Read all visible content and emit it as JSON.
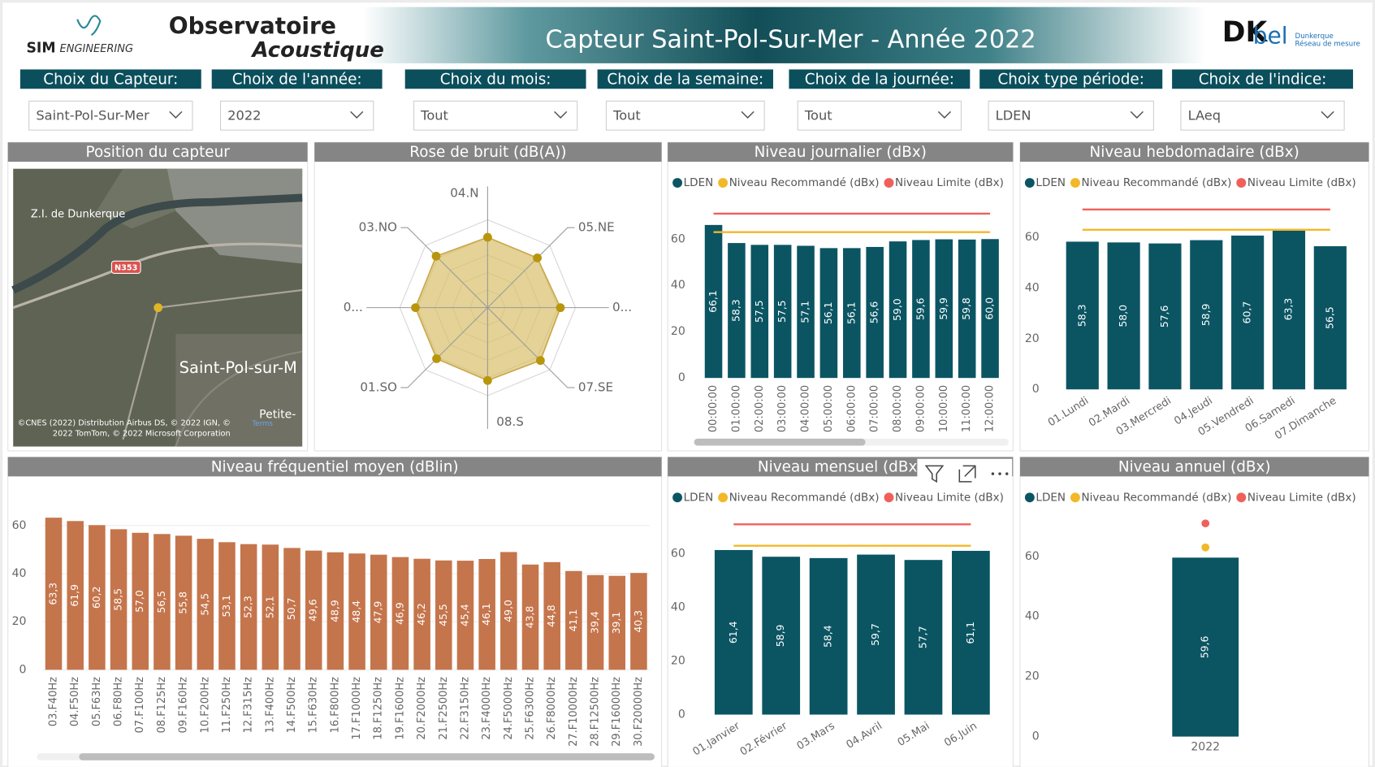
{
  "header": {
    "logo": {
      "sim": "SIM",
      "engineering": "ENGINEERING"
    },
    "brand_1": "Observatoire",
    "brand_2": "Acoustique",
    "title": "Capteur Saint-Pol-Sur-Mer - Année 2022",
    "partner": {
      "dk": "DK",
      "bel": "bel",
      "line_1": "Dunkerque",
      "line_2": "Réseau de mesure"
    }
  },
  "filters": [
    {
      "label": "Choix du Capteur:",
      "value": "Saint-Pol-Sur-Mer"
    },
    {
      "label": "Choix de l'année:",
      "value": "2022"
    },
    {
      "label": "Choix du mois:",
      "value": "Tout"
    },
    {
      "label": "Choix de la semaine:",
      "value": "Tout"
    },
    {
      "label": "Choix de la journée:",
      "value": "Tout"
    },
    {
      "label": "Choix type période:",
      "value": "LDEN"
    },
    {
      "label": "Choix de l'indice:",
      "value": "LAeq"
    }
  ],
  "map": {
    "title": "Position du capteur",
    "labels": {
      "zone": "Z.I. de Dunkerque",
      "road": "N353",
      "town": "Saint-Pol-sur-M",
      "town_2": "Petite-"
    },
    "attribution": [
      "©CNES (2022) Distribution Airbus DS, © 2022 IGN, ©",
      "2022 TomTom, © 2022 Microsoft Corporation"
    ],
    "terms": "Terms"
  },
  "chart_data": [
    {
      "type": "radar",
      "title": "Rose de bruit (dB(A))",
      "categories": [
        "04.N",
        "05.NE",
        "0...",
        "07.SE",
        "08.S",
        "01.SO",
        "0...",
        "03.NO"
      ],
      "values": [
        56,
        56,
        58,
        59.5,
        58,
        57.5,
        57.5,
        58
      ],
      "color": "#b8960c",
      "rlim": [
        0,
        70
      ]
    },
    {
      "type": "bar",
      "title": "Niveau journalier (dBx)",
      "categories": [
        "00:00:00",
        "01:00:00",
        "02:00:00",
        "03:00:00",
        "04:00:00",
        "05:00:00",
        "06:00:00",
        "07:00:00",
        "08:00:00",
        "09:00:00",
        "10:00:00",
        "11:00:00",
        "12:00:00"
      ],
      "series": [
        {
          "name": "LDEN",
          "color": "#0b5563",
          "values": [
            66.1,
            58.3,
            57.5,
            57.5,
            57.1,
            56.1,
            56.1,
            56.6,
            59.0,
            59.6,
            59.9,
            59.8,
            60.0
          ],
          "value_labels": [
            "66,1",
            "58,3",
            "57,5",
            "57,5",
            "57,1",
            "56,1",
            "56,1",
            "56,6",
            "59,0",
            "59,6",
            "59,9",
            "59,8",
            "60,0"
          ]
        },
        {
          "name": "Niveau Recommandé (dBx)",
          "color": "#f2b829",
          "type": "line",
          "values": [
            63,
            63,
            63,
            63,
            63,
            63,
            63,
            63,
            63,
            63,
            63,
            63,
            63
          ]
        },
        {
          "name": "Niveau Limite (dBx)",
          "color": "#f0605b",
          "type": "line",
          "values": [
            71,
            71,
            71,
            71,
            71,
            71,
            71,
            71,
            71,
            71,
            71,
            71,
            71
          ]
        }
      ],
      "ylim": [
        0,
        75
      ],
      "yticks": [
        0,
        20,
        40,
        60
      ],
      "legend": "top-left"
    },
    {
      "type": "bar",
      "title": "Niveau hebdomadaire  (dBx)",
      "categories": [
        "01.Lundi",
        "02.Mardi",
        "03.Mercredi",
        "04.Jeudi",
        "05.Vendredi",
        "06.Samedi",
        "07.Dimanche"
      ],
      "series": [
        {
          "name": "LDEN",
          "color": "#0b5563",
          "values": [
            58.3,
            58.0,
            57.6,
            58.9,
            60.7,
            63.3,
            56.5
          ],
          "value_labels": [
            "58,3",
            "58,0",
            "57,6",
            "58,9",
            "60,7",
            "63,3",
            "56,5"
          ]
        },
        {
          "name": "Niveau Recommandé (dBx)",
          "color": "#f2b829",
          "type": "line",
          "values": [
            63,
            63,
            63,
            63,
            63,
            63,
            63
          ]
        },
        {
          "name": "Niveau Limite (dBx)",
          "color": "#f0605b",
          "type": "line",
          "values": [
            71,
            71,
            71,
            71,
            71,
            71,
            71
          ]
        }
      ],
      "ylim": [
        0,
        75
      ],
      "yticks": [
        0,
        20,
        40,
        60
      ],
      "legend": "top-left"
    },
    {
      "type": "bar",
      "title": "Niveau fréquentiel moyen (dBlin)",
      "categories": [
        "03.F40Hz",
        "04.F50Hz",
        "05.F63Hz",
        "06.F80Hz",
        "07.F100Hz",
        "08.F125Hz",
        "09.F160Hz",
        "10.F200Hz",
        "11.F250Hz",
        "12.F315Hz",
        "13.F400Hz",
        "14.F500Hz",
        "15.F630Hz",
        "16.F800Hz",
        "17.F1000Hz",
        "18.F1250Hz",
        "19.F1600Hz",
        "20.F2000Hz",
        "21.F2500Hz",
        "22.F3150Hz",
        "23.F4000Hz",
        "24.F5000Hz",
        "25.F6300Hz",
        "26.F8000Hz",
        "27.F10000Hz",
        "28.F12500Hz",
        "29.F16000Hz",
        "30.F20000Hz"
      ],
      "values": [
        63.3,
        61.9,
        60.2,
        58.5,
        57.0,
        56.5,
        55.8,
        54.5,
        53.1,
        52.3,
        52.1,
        50.7,
        49.6,
        48.9,
        48.4,
        47.9,
        46.9,
        46.2,
        45.5,
        45.4,
        46.1,
        49.0,
        43.8,
        44.8,
        41.1,
        39.4,
        39.1,
        40.3
      ],
      "value_labels": [
        "63,3",
        "61,9",
        "60,2",
        "58,5",
        "57,0",
        "56,5",
        "55,8",
        "54,5",
        "53,1",
        "52,3",
        "52,1",
        "50,7",
        "49,6",
        "48,9",
        "48,4",
        "47,9",
        "46,9",
        "46,2",
        "45,5",
        "45,4",
        "46,1",
        "49,0",
        "43,8",
        "44,8",
        "41,1",
        "39,4",
        "39,1",
        "40,3"
      ],
      "color": "#c5754c",
      "ylim": [
        0,
        65
      ],
      "yticks": [
        0,
        20,
        40,
        60
      ],
      "grid": true
    },
    {
      "type": "bar",
      "title": "Niveau mensuel  (dBx)",
      "categories": [
        "01.Janvier",
        "02.Février",
        "03.Mars",
        "04.Avril",
        "05.Mai",
        "06.Juin"
      ],
      "series": [
        {
          "name": "LDEN",
          "color": "#0b5563",
          "values": [
            61.4,
            58.9,
            58.4,
            59.7,
            57.7,
            61.1
          ],
          "value_labels": [
            "61,4",
            "58,9",
            "58,4",
            "59,7",
            "57,7",
            "61,1"
          ]
        },
        {
          "name": "Niveau Recommandé (dBx)",
          "color": "#f2b829",
          "type": "line",
          "values": [
            63,
            63,
            63,
            63,
            63,
            63
          ]
        },
        {
          "name": "Niveau Limite (dBx)",
          "color": "#f0605b",
          "type": "line",
          "values": [
            71,
            71,
            71,
            71,
            71,
            71
          ]
        }
      ],
      "ylim": [
        0,
        75
      ],
      "yticks": [
        0,
        20,
        40,
        60
      ],
      "legend": "top-left"
    },
    {
      "type": "bar",
      "title": "Niveau annuel  (dBx)",
      "categories": [
        "2022"
      ],
      "series": [
        {
          "name": "LDEN",
          "color": "#0b5563",
          "values": [
            59.6
          ],
          "value_labels": [
            "59,6"
          ]
        },
        {
          "name": "Niveau Recommandé (dBx)",
          "color": "#f2b829",
          "type": "dot",
          "values": [
            63
          ]
        },
        {
          "name": "Niveau Limite (dBx)",
          "color": "#f0605b",
          "type": "dot",
          "values": [
            71
          ]
        }
      ],
      "ylim": [
        0,
        75
      ],
      "yticks": [
        0,
        20,
        40,
        60
      ],
      "legend": "top-left"
    }
  ]
}
